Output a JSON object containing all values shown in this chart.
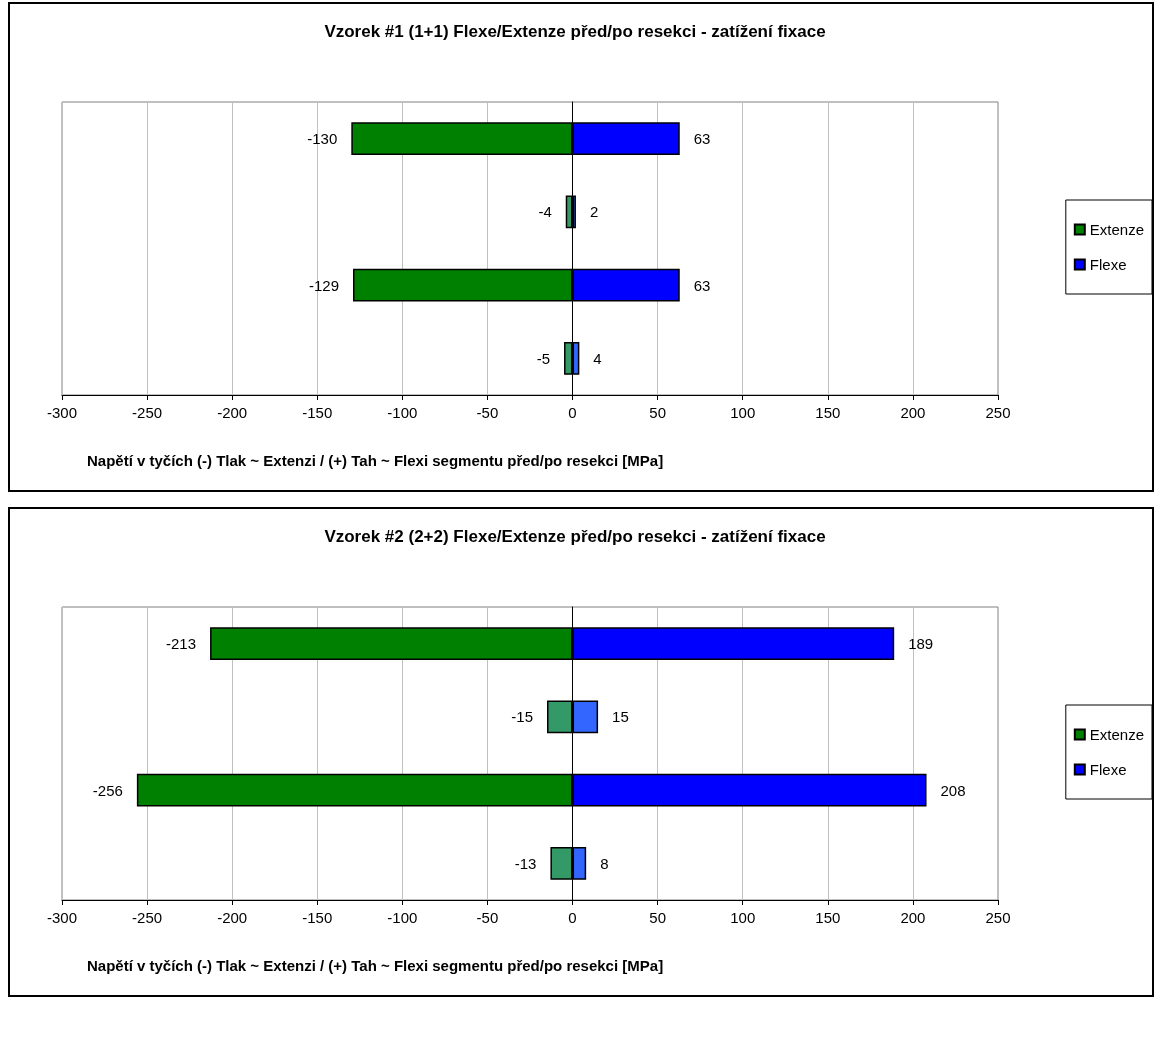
{
  "chart_data": [
    {
      "type": "bar",
      "orientation": "horizontal",
      "stacked": true,
      "title": "Vzorek #1 (1+1) Flexe/Extenze před/po resekci - zatížení fixace",
      "xlabel": "Napětí v tyčích (-) Tlak ~ Extenzi / (+) Tah ~ Flexi segmentu před/po resekci [MPa]",
      "categories": [
        null,
        null,
        null,
        null
      ],
      "xlim": [
        -300,
        250
      ],
      "xticks": [
        -300,
        -250,
        -200,
        -150,
        -100,
        -50,
        0,
        50,
        100,
        150,
        200,
        250
      ],
      "grid": "x",
      "legend": "right",
      "data_labels": true,
      "series": [
        {
          "name": "Extenze",
          "color": "#008000",
          "colors": [
            "#008000",
            "#339966",
            "#008000",
            "#339966"
          ],
          "values": [
            -130,
            -4,
            -129,
            -5
          ]
        },
        {
          "name": "Flexe",
          "color": "#0000ff",
          "colors": [
            "#0000ff",
            "#3366ff",
            "#0000ff",
            "#3366ff"
          ],
          "values": [
            63,
            2,
            63,
            4
          ]
        }
      ]
    },
    {
      "type": "bar",
      "orientation": "horizontal",
      "stacked": true,
      "title": "Vzorek #2 (2+2) Flexe/Extenze před/po resekci - zatížení fixace",
      "xlabel": "Napětí v tyčích (-) Tlak ~ Extenzi / (+) Tah ~ Flexi segmentu před/po resekci [MPa]",
      "categories": [
        null,
        null,
        null,
        null
      ],
      "xlim": [
        -300,
        250
      ],
      "xticks": [
        -300,
        -250,
        -200,
        -150,
        -100,
        -50,
        0,
        50,
        100,
        150,
        200,
        250
      ],
      "grid": "x",
      "legend": "right",
      "data_labels": true,
      "series": [
        {
          "name": "Extenze",
          "color": "#008000",
          "colors": [
            "#008000",
            "#339966",
            "#008000",
            "#339966"
          ],
          "values": [
            -213,
            -15,
            -256,
            -13
          ]
        },
        {
          "name": "Flexe",
          "color": "#0000ff",
          "colors": [
            "#0000ff",
            "#3366ff",
            "#0000ff",
            "#3366ff"
          ],
          "values": [
            189,
            15,
            208,
            8
          ]
        }
      ]
    }
  ]
}
